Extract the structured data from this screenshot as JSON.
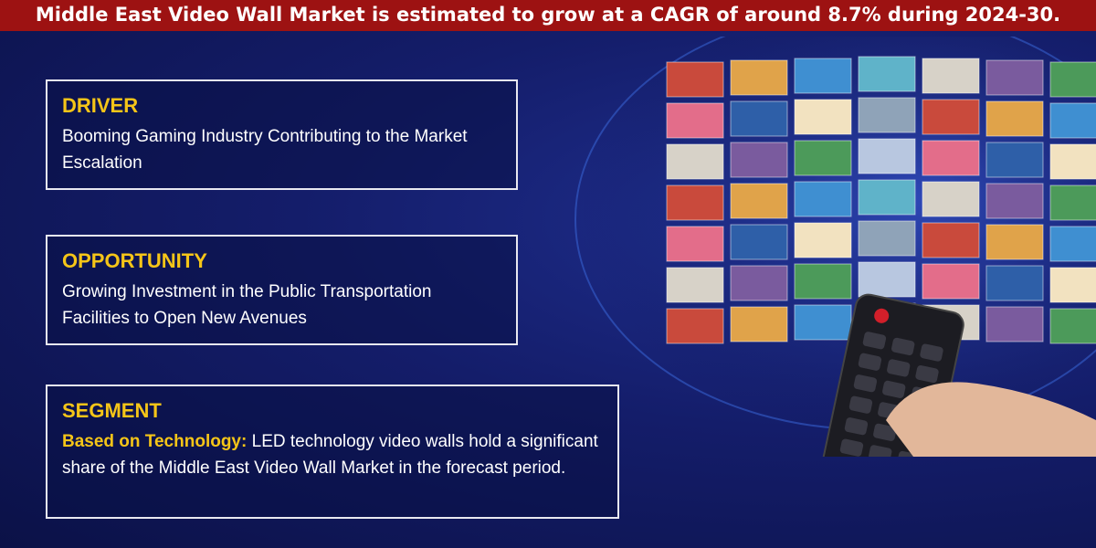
{
  "header": {
    "title": "Middle East Video Wall Market is estimated to grow at a CAGR of around 8.7% during 2024-30."
  },
  "cards": [
    {
      "title": "DRIVER",
      "text": "Booming Gaming Industry Contributing to the Market Escalation"
    },
    {
      "title": "OPPORTUNITY",
      "text": "Growing Investment in the Public Transportation Facilities to Open New Avenues"
    },
    {
      "title": "SEGMENT",
      "label": "Based on Technology:",
      "text": "LED technology video walls hold a significant share of the Middle East Video Wall Market in the forecast period."
    }
  ]
}
